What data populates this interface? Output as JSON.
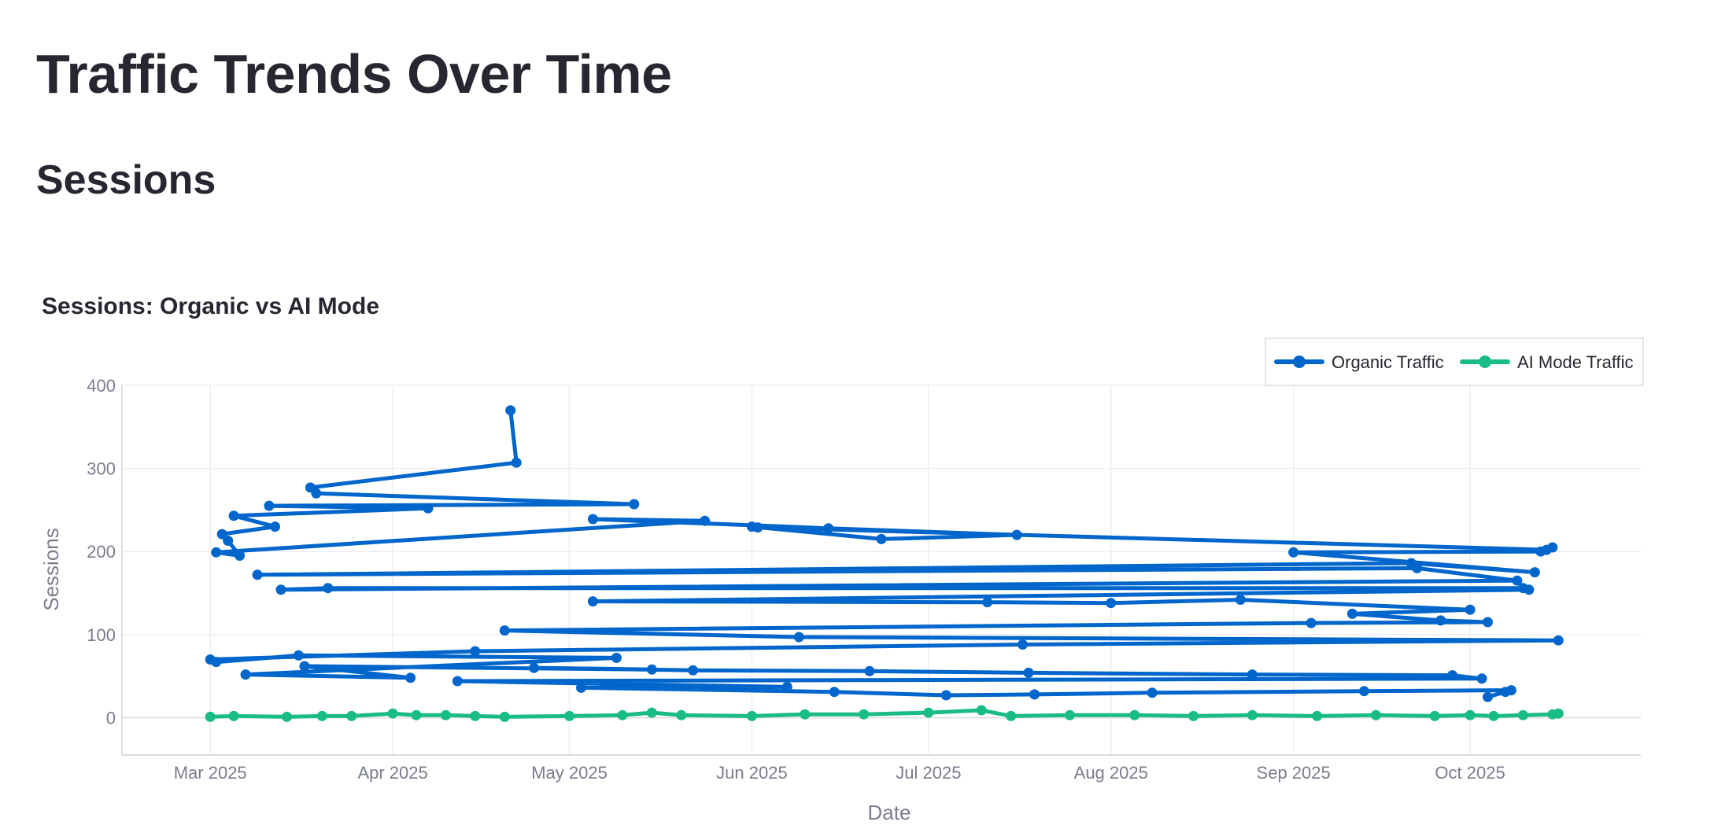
{
  "page": {
    "title": "Traffic Trends Over Time",
    "section": "Sessions"
  },
  "colors": {
    "organic": "#0066cc",
    "ai_mode": "#1abc85",
    "grid": "#eeeef2",
    "axis_text": "#7a7d8c"
  },
  "chart_data": {
    "type": "line",
    "title": "Sessions: Organic vs AI Mode",
    "xlabel": "Date",
    "ylabel": "Sessions",
    "ylim": [
      -45,
      400
    ],
    "xlim": [
      "2025-02-14",
      "2025-10-30"
    ],
    "yticks": [
      0,
      100,
      200,
      300,
      400
    ],
    "xticks": [
      {
        "date": "2025-03-01",
        "label": "Mar 2025"
      },
      {
        "date": "2025-04-01",
        "label": "Apr 2025"
      },
      {
        "date": "2025-05-01",
        "label": "May 2025"
      },
      {
        "date": "2025-06-01",
        "label": "Jun 2025"
      },
      {
        "date": "2025-07-01",
        "label": "Jul 2025"
      },
      {
        "date": "2025-08-01",
        "label": "Aug 2025"
      },
      {
        "date": "2025-09-01",
        "label": "Sep 2025"
      },
      {
        "date": "2025-10-01",
        "label": "Oct 2025"
      }
    ],
    "grid": true,
    "legend_position": "top-right",
    "series": [
      {
        "name": "Organic Traffic",
        "points": [
          [
            "2025-04-21",
            370
          ],
          [
            "2025-04-22",
            307
          ],
          [
            "2025-03-18",
            277
          ],
          [
            "2025-03-19",
            270
          ],
          [
            "2025-05-12",
            257
          ],
          [
            "2025-03-11",
            255
          ],
          [
            "2025-04-07",
            252
          ],
          [
            "2025-03-05",
            243
          ],
          [
            "2025-03-12",
            230
          ],
          [
            "2025-03-03",
            221
          ],
          [
            "2025-03-04",
            213
          ],
          [
            "2025-03-06",
            195
          ],
          [
            "2025-03-02",
            199
          ],
          [
            "2025-05-24",
            237
          ],
          [
            "2025-05-05",
            239
          ],
          [
            "2025-06-14",
            228
          ],
          [
            "2025-07-16",
            220
          ],
          [
            "2025-06-23",
            215
          ],
          [
            "2025-06-01",
            230
          ],
          [
            "2025-06-02",
            229
          ],
          [
            "2025-10-14",
            202
          ],
          [
            "2025-10-15",
            205
          ],
          [
            "2025-10-13",
            200
          ],
          [
            "2025-09-01",
            199
          ],
          [
            "2025-10-12",
            175
          ],
          [
            "2025-09-21",
            186
          ],
          [
            "2025-03-09",
            172
          ],
          [
            "2025-09-22",
            180
          ],
          [
            "2025-10-09",
            165
          ],
          [
            "2025-03-13",
            154
          ],
          [
            "2025-03-21",
            156
          ],
          [
            "2025-10-10",
            156
          ],
          [
            "2025-10-11",
            154
          ],
          [
            "2025-05-05",
            140
          ],
          [
            "2025-07-11",
            139
          ],
          [
            "2025-08-01",
            138
          ],
          [
            "2025-08-23",
            142
          ],
          [
            "2025-10-01",
            130
          ],
          [
            "2025-09-11",
            125
          ],
          [
            "2025-09-26",
            117
          ],
          [
            "2025-10-04",
            115
          ],
          [
            "2025-09-04",
            114
          ],
          [
            "2025-04-20",
            105
          ],
          [
            "2025-06-09",
            97
          ],
          [
            "2025-10-16",
            93
          ],
          [
            "2025-07-17",
            88
          ],
          [
            "2025-04-15",
            80
          ],
          [
            "2025-03-01",
            70
          ],
          [
            "2025-03-02",
            67
          ],
          [
            "2025-03-16",
            75
          ],
          [
            "2025-05-09",
            72
          ],
          [
            "2025-03-07",
            52
          ],
          [
            "2025-04-04",
            48
          ],
          [
            "2025-03-17",
            62
          ],
          [
            "2025-05-15",
            58
          ],
          [
            "2025-04-25",
            60
          ],
          [
            "2025-05-22",
            57
          ],
          [
            "2025-06-21",
            56
          ],
          [
            "2025-07-18",
            54
          ],
          [
            "2025-08-25",
            52
          ],
          [
            "2025-09-28",
            51
          ],
          [
            "2025-10-03",
            47
          ],
          [
            "2025-04-12",
            44
          ],
          [
            "2025-06-07",
            37
          ],
          [
            "2025-05-03",
            36
          ],
          [
            "2025-06-15",
            31
          ],
          [
            "2025-07-04",
            27
          ],
          [
            "2025-07-19",
            28
          ],
          [
            "2025-08-08",
            30
          ],
          [
            "2025-09-13",
            32
          ],
          [
            "2025-10-08",
            33
          ],
          [
            "2025-10-04",
            25
          ],
          [
            "2025-10-07",
            31
          ]
        ]
      },
      {
        "name": "AI Mode Traffic",
        "points": [
          [
            "2025-03-01",
            1
          ],
          [
            "2025-03-05",
            2
          ],
          [
            "2025-03-14",
            1
          ],
          [
            "2025-03-20",
            2
          ],
          [
            "2025-03-25",
            2
          ],
          [
            "2025-04-01",
            5
          ],
          [
            "2025-04-05",
            3
          ],
          [
            "2025-04-10",
            3
          ],
          [
            "2025-04-15",
            2
          ],
          [
            "2025-04-20",
            1
          ],
          [
            "2025-05-01",
            2
          ],
          [
            "2025-05-10",
            3
          ],
          [
            "2025-05-15",
            6
          ],
          [
            "2025-05-20",
            3
          ],
          [
            "2025-06-01",
            2
          ],
          [
            "2025-06-10",
            4
          ],
          [
            "2025-06-20",
            4
          ],
          [
            "2025-07-01",
            6
          ],
          [
            "2025-07-10",
            9
          ],
          [
            "2025-07-15",
            2
          ],
          [
            "2025-07-25",
            3
          ],
          [
            "2025-08-05",
            3
          ],
          [
            "2025-08-15",
            2
          ],
          [
            "2025-08-25",
            3
          ],
          [
            "2025-09-05",
            2
          ],
          [
            "2025-09-15",
            3
          ],
          [
            "2025-09-25",
            2
          ],
          [
            "2025-10-01",
            3
          ],
          [
            "2025-10-05",
            2
          ],
          [
            "2025-10-10",
            3
          ],
          [
            "2025-10-15",
            4
          ],
          [
            "2025-10-16",
            5
          ]
        ]
      }
    ]
  }
}
